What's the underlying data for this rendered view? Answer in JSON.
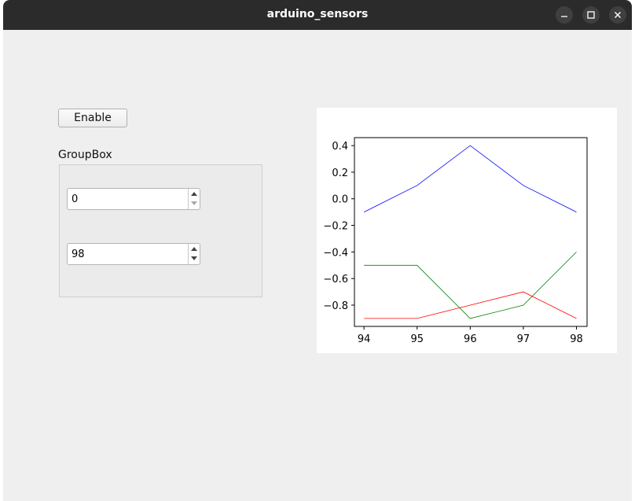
{
  "window": {
    "title": "arduino_sensors"
  },
  "controls": {
    "enable_label": "Enable",
    "groupbox_title": "GroupBox",
    "spinbox_1_value": "0",
    "spinbox_2_value": "98"
  },
  "icons": {
    "minimize": "minimize-icon",
    "maximize": "maximize-icon",
    "close": "close-icon"
  },
  "chart_data": {
    "type": "line",
    "x": [
      94,
      95,
      96,
      97,
      98
    ],
    "xticks": [
      "94",
      "95",
      "96",
      "97",
      "98"
    ],
    "yticks": [
      "0.4",
      "0.2",
      "0.0",
      "−0.2",
      "−0.4",
      "−0.6",
      "−0.8"
    ],
    "ytick_values": [
      0.4,
      0.2,
      0.0,
      -0.2,
      -0.4,
      -0.6,
      -0.8
    ],
    "xlim": [
      93.82,
      98.2
    ],
    "ylim": [
      -0.96,
      0.46
    ],
    "grid": false,
    "series": [
      {
        "color": "#0000ff",
        "values": [
          -0.1,
          0.1,
          0.4,
          0.1,
          -0.1
        ]
      },
      {
        "color": "#008000",
        "values": [
          -0.5,
          -0.5,
          -0.9,
          -0.8,
          -0.4
        ]
      },
      {
        "color": "#ff0000",
        "values": [
          -0.9,
          -0.9,
          -0.8,
          -0.7,
          -0.9
        ]
      }
    ]
  }
}
